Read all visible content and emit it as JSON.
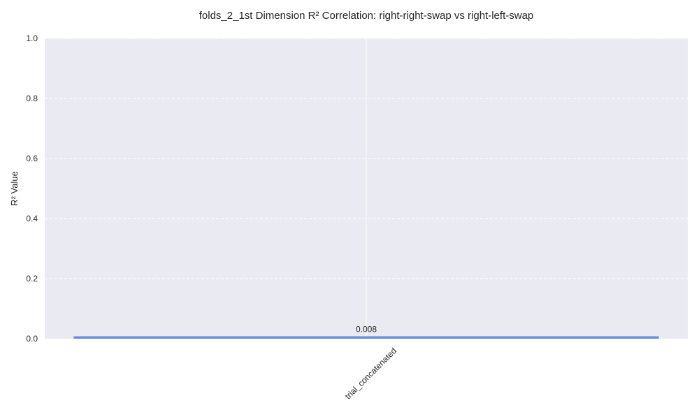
{
  "chart_data": {
    "type": "bar",
    "title": "folds_2_1st Dimension R² Correlation: right-right-swap vs right-left-swap",
    "xlabel": "",
    "ylabel": "R² Value",
    "categories": [
      "trial_concatenated"
    ],
    "values": [
      0.008
    ],
    "data_labels": [
      "0.008"
    ],
    "ylim": [
      0,
      1.0
    ],
    "yticks": [
      0.0,
      0.2,
      0.4,
      0.6,
      0.8,
      1.0
    ],
    "ytick_labels": [
      "0.0",
      "0.2",
      "0.4",
      "0.6",
      "0.8",
      "1.0"
    ],
    "grid": true,
    "grid_style": "dashed",
    "colors": {
      "bar": "#6a89e0",
      "background": "#eaeaf2",
      "grid": "#ffffff"
    }
  }
}
